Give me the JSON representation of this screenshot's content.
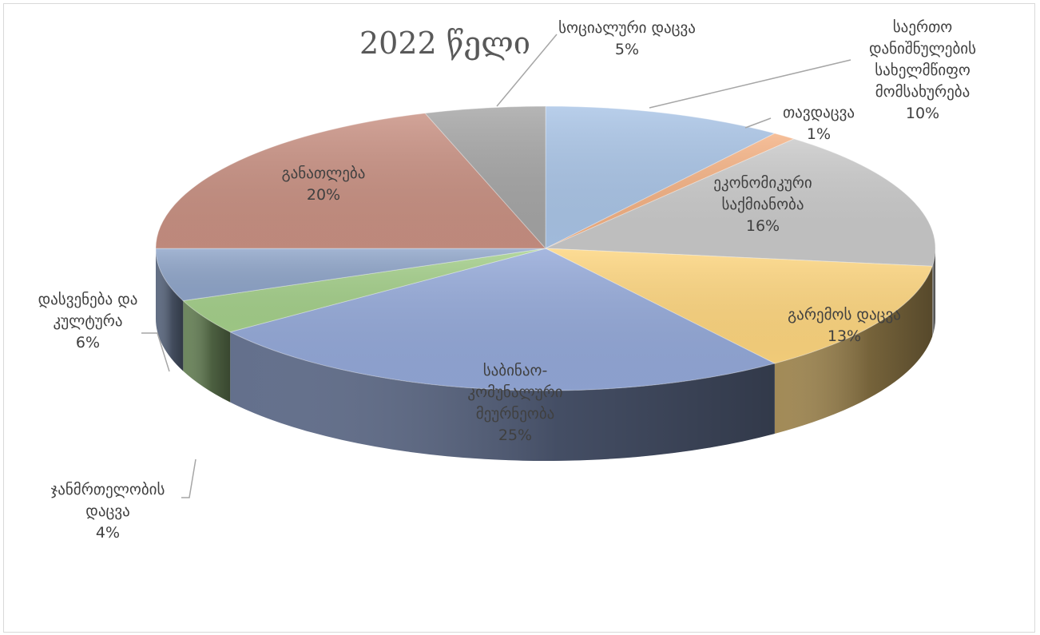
{
  "chart_data": {
    "type": "pie",
    "title": "2022 წელი",
    "slices": [
      {
        "label": "საერთო დანიშნულების სახელმწიფო მომსახურება",
        "lines": [
          "საერთო",
          "დანიშნულების",
          "სახელმწიფო",
          "მომსახურება",
          "10%"
        ],
        "value": 10,
        "color": "#a9c4e6"
      },
      {
        "label": "თავდაცვა",
        "lines": [
          "თავდაცვა",
          "1%"
        ],
        "value": 1,
        "color": "#f4b183"
      },
      {
        "label": "ეკონომიკური საქმიანობა",
        "lines": [
          "ეკონომიკური",
          "საქმიანობა",
          "16%"
        ],
        "value": 16,
        "color": "#c9c9c9"
      },
      {
        "label": "გარემოს დაცვა",
        "lines": [
          "გარემოს დაცვა",
          "13%"
        ],
        "value": 13,
        "color": "#fdd57e"
      },
      {
        "label": "საბინაო-კომუნალური მეურნეობა",
        "lines": [
          "საბინაო-",
          "კომუნალური",
          "მეურნეობა",
          "25%"
        ],
        "value": 25,
        "color": "#93a8d8"
      },
      {
        "label": "ჯანმრთელობის დაცვა",
        "lines": [
          "ჯანმრთელობის",
          "დაცვა",
          "4%"
        ],
        "value": 4,
        "color": "#a4cf8a"
      },
      {
        "label": "დასვენება და კულტურა",
        "lines": [
          "დასვენება და",
          "კულტურა",
          "6%"
        ],
        "value": 6,
        "color": "#8fa5c9"
      },
      {
        "label": "განათლება",
        "lines": [
          "განათლება",
          "20%"
        ],
        "value": 20,
        "color": "#c89082"
      },
      {
        "label": "სოციალური დაცვა",
        "lines": [
          "სოციალური დაცვა",
          "5%"
        ],
        "value": 5,
        "color": "#a5a5a5"
      }
    ]
  }
}
